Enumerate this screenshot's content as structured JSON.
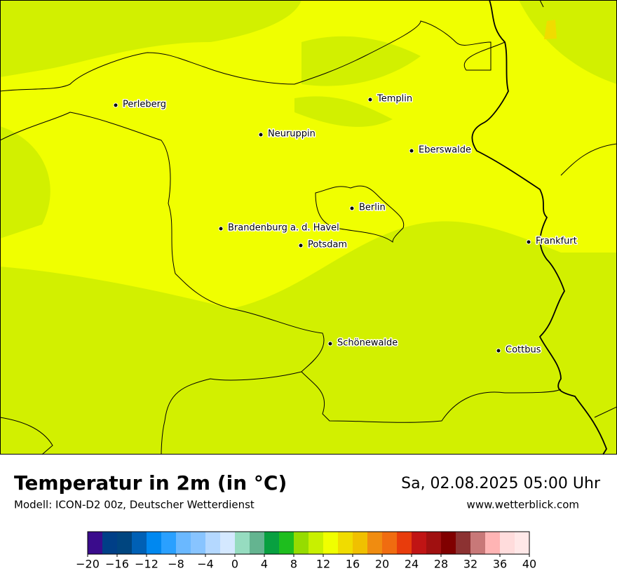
{
  "map": {
    "cities": [
      "Perleberg",
      "Templin",
      "Neuruppin",
      "Eberswalde",
      "Berlin",
      "Brandenburg a. d. Havel",
      "Potsdam",
      "Frankfurt",
      "Schönewalde",
      "Cottbus"
    ]
  },
  "footer": {
    "title": "Temperatur in 2m (in °C)",
    "model": "Modell: ICON-D2 00z, Deutscher Wetterdienst",
    "datetime": "Sa, 02.08.2025 05:00 Uhr",
    "website": "www.wetterblick.com"
  },
  "colorbar": {
    "bins": [
      -20,
      -18,
      -16,
      -14,
      -12,
      -10,
      -8,
      -6,
      -4,
      -2,
      0,
      2,
      4,
      6,
      8,
      10,
      12,
      14,
      16,
      18,
      20,
      22,
      24,
      26,
      28,
      30,
      32,
      34,
      36,
      38,
      40
    ],
    "colors": [
      "#3a0c8c",
      "#003f87",
      "#00457f",
      "#0060b5",
      "#0088f0",
      "#2aa0ff",
      "#6ab8ff",
      "#88c4ff",
      "#b4d8ff",
      "#d4e8ff",
      "#96dcc0",
      "#64b490",
      "#08a040",
      "#1ebe1e",
      "#96dc00",
      "#c8f000",
      "#f0ff00",
      "#f0dc00",
      "#f0c000",
      "#f08c10",
      "#f06c10",
      "#e83c0c",
      "#c01414",
      "#a01010",
      "#800000",
      "#8c3232",
      "#c87878",
      "#ffb4b4",
      "#ffdcdc",
      "#ffe8e8"
    ],
    "ticks": [
      {
        "value": -20,
        "label": "−20"
      },
      {
        "value": -16,
        "label": "−16"
      },
      {
        "value": -12,
        "label": "−12"
      },
      {
        "value": -8,
        "label": "−8"
      },
      {
        "value": -4,
        "label": "−4"
      },
      0,
      4,
      8,
      12,
      16,
      20,
      24,
      28,
      32,
      36,
      40
    ]
  }
}
